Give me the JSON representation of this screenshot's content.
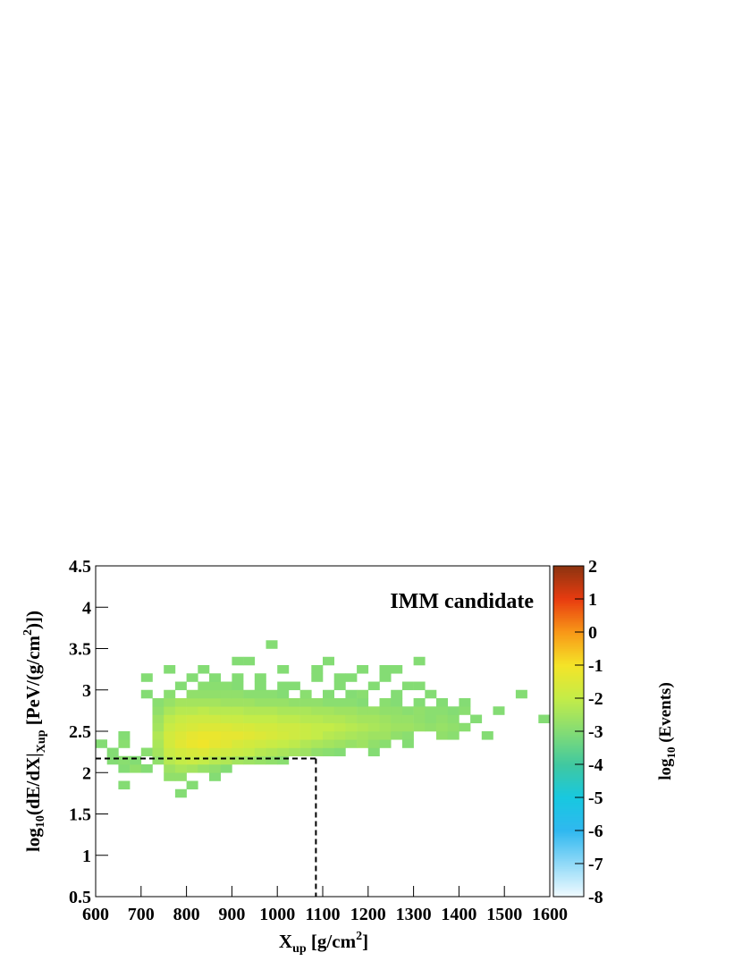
{
  "chart_data": {
    "type": "heatmap",
    "annotation": "IMM candidate",
    "x_label": [
      "X",
      "up",
      " [g/cm",
      "2",
      "]"
    ],
    "y_label": [
      "log",
      "10",
      "(dE/dX|",
      "Xup",
      " [PeV/(g/cm",
      "2",
      ")])"
    ],
    "z_label": [
      "log",
      "10",
      " (Events)"
    ],
    "xlim": [
      600,
      1600
    ],
    "ylim": [
      0.5,
      4.5
    ],
    "zlim": [
      -8,
      2
    ],
    "xticks": [
      600,
      700,
      800,
      900,
      1000,
      1100,
      1200,
      1300,
      1400,
      1500,
      1600
    ],
    "yticks": [
      0.5,
      1,
      1.5,
      2,
      2.5,
      3,
      3.5,
      4,
      4.5
    ],
    "zticks": [
      -8,
      -7,
      -6,
      -5,
      -4,
      -3,
      -2,
      -1,
      0,
      1,
      2
    ],
    "xbins": [
      600,
      625,
      650,
      675,
      700,
      725,
      750,
      775,
      800,
      825,
      850,
      875,
      900,
      925,
      950,
      975,
      1000,
      1025,
      1050,
      1075,
      1100,
      1125,
      1150,
      1175,
      1200,
      1225,
      1250,
      1275,
      1300,
      1325,
      1350,
      1375,
      1400,
      1425,
      1450,
      1475,
      1500,
      1525,
      1550,
      1575,
      1600
    ],
    "ybins": [
      0.5,
      0.6,
      0.7,
      0.8,
      0.9,
      1.0,
      1.1,
      1.2,
      1.3,
      1.4,
      1.5,
      1.6,
      1.7,
      1.8,
      1.9,
      2.0,
      2.1,
      2.2,
      2.3,
      2.4,
      2.5,
      2.6,
      2.7,
      2.8,
      2.9,
      3.0,
      3.1,
      3.2,
      3.3,
      3.4,
      3.5,
      3.6,
      3.7,
      3.8,
      3.9,
      4.0,
      4.1,
      4.2,
      4.3,
      4.4,
      4.5
    ],
    "colorscale": [
      [
        -8,
        "#f2fbff"
      ],
      [
        -6,
        "#30b8f0"
      ],
      [
        -5,
        "#18c8e0"
      ],
      [
        -4,
        "#40c8a0"
      ],
      [
        -3,
        "#84dc74"
      ],
      [
        -2,
        "#c4ec48"
      ],
      [
        -1,
        "#f4e428"
      ],
      [
        0,
        "#f89818"
      ],
      [
        1,
        "#e83c10"
      ],
      [
        2,
        "#8c3410"
      ]
    ],
    "cut": {
      "x": 1085,
      "y": 2.17
    },
    "rows": [
      {
        "y": 1.7,
        "x": [
          775
        ],
        "z": [
          -3
        ]
      },
      {
        "y": 1.8,
        "x": [
          650,
          800
        ],
        "z": [
          -3,
          -3
        ]
      },
      {
        "y": 1.9,
        "x": [
          750,
          775,
          850
        ],
        "z": [
          -2.8,
          -2.8,
          -3
        ]
      },
      {
        "y": 2.0,
        "x": [
          650,
          675,
          700,
          750,
          775,
          800,
          825,
          850,
          875
        ],
        "z": [
          -3,
          -2.8,
          -3,
          -2.6,
          -2.4,
          -2.5,
          -2.7,
          -2.8,
          -3
        ]
      },
      {
        "y": 2.1,
        "x": [
          625,
          650,
          675,
          725,
          750,
          775,
          800,
          825,
          850,
          875,
          900,
          925,
          950,
          975,
          1000
        ],
        "z": [
          -3,
          -2.9,
          -3,
          -2.8,
          -2.2,
          -2.0,
          -1.9,
          -2.0,
          -2.2,
          -2.3,
          -2.5,
          -2.6,
          -2.7,
          -2.8,
          -2.9
        ]
      },
      {
        "y": 2.2,
        "x": [
          625,
          700,
          725,
          750,
          775,
          800,
          825,
          850,
          875,
          900,
          925,
          950,
          975,
          1000,
          1025,
          1050,
          1075,
          1100,
          1125,
          1200
        ],
        "z": [
          -3,
          -2.9,
          -2.5,
          -1.9,
          -1.7,
          -1.6,
          -1.5,
          -1.7,
          -1.8,
          -1.9,
          -2.0,
          -2.2,
          -2.3,
          -2.4,
          -2.5,
          -2.6,
          -2.8,
          -2.9,
          -3,
          -3
        ]
      },
      {
        "y": 2.3,
        "x": [
          600,
          650,
          725,
          750,
          775,
          800,
          825,
          850,
          875,
          900,
          925,
          950,
          975,
          1000,
          1025,
          1050,
          1075,
          1100,
          1125,
          1150,
          1175,
          1200,
          1225,
          1275
        ],
        "z": [
          -3,
          -2.9,
          -2.4,
          -1.7,
          -1.4,
          -1.2,
          -1.1,
          -1.3,
          -1.4,
          -1.6,
          -1.7,
          -1.8,
          -1.9,
          -2.0,
          -2.1,
          -2.3,
          -2.4,
          -2.5,
          -2.6,
          -2.7,
          -2.6,
          -2.8,
          -2.9,
          -3
        ]
      },
      {
        "y": 2.4,
        "x": [
          650,
          725,
          750,
          775,
          800,
          825,
          850,
          875,
          900,
          925,
          950,
          975,
          1000,
          1025,
          1050,
          1075,
          1100,
          1125,
          1150,
          1175,
          1200,
          1225,
          1250,
          1275,
          1350,
          1375,
          1450
        ],
        "z": [
          -3,
          -2.3,
          -1.7,
          -1.5,
          -1.3,
          -1.2,
          -1.2,
          -1.3,
          -1.3,
          -1.4,
          -1.5,
          -1.6,
          -1.7,
          -1.8,
          -1.9,
          -2.0,
          -2.2,
          -2.3,
          -2.4,
          -2.5,
          -2.6,
          -2.6,
          -2.8,
          -2.9,
          -2.8,
          -2.9,
          -3
        ]
      },
      {
        "y": 2.5,
        "x": [
          725,
          750,
          775,
          800,
          825,
          850,
          875,
          900,
          925,
          950,
          975,
          1000,
          1025,
          1050,
          1075,
          1100,
          1125,
          1150,
          1175,
          1200,
          1225,
          1250,
          1275,
          1300,
          1325,
          1350,
          1375,
          1400
        ],
        "z": [
          -2.5,
          -1.9,
          -1.7,
          -1.6,
          -1.5,
          -1.5,
          -1.5,
          -1.6,
          -1.6,
          -1.7,
          -1.7,
          -1.8,
          -1.8,
          -1.9,
          -2.0,
          -2.0,
          -2.1,
          -2.2,
          -2.3,
          -2.4,
          -2.5,
          -2.6,
          -2.6,
          -2.7,
          -2.8,
          -2.7,
          -2.8,
          -2.9
        ]
      },
      {
        "y": 2.6,
        "x": [
          725,
          750,
          775,
          800,
          825,
          850,
          875,
          900,
          925,
          950,
          975,
          1000,
          1025,
          1050,
          1075,
          1100,
          1125,
          1150,
          1175,
          1200,
          1225,
          1250,
          1275,
          1300,
          1325,
          1350,
          1375,
          1425,
          1575
        ],
        "z": [
          -2.6,
          -2.1,
          -1.9,
          -1.8,
          -1.8,
          -1.8,
          -1.9,
          -1.9,
          -2.0,
          -2.0,
          -2.0,
          -2.1,
          -2.1,
          -2.2,
          -2.2,
          -2.3,
          -2.3,
          -2.4,
          -2.5,
          -2.5,
          -2.6,
          -2.7,
          -2.7,
          -2.8,
          -2.9,
          -2.8,
          -2.9,
          -3,
          -3
        ]
      },
      {
        "y": 2.7,
        "x": [
          725,
          750,
          775,
          800,
          825,
          850,
          875,
          900,
          925,
          950,
          975,
          1000,
          1025,
          1050,
          1075,
          1100,
          1125,
          1150,
          1175,
          1200,
          1225,
          1250,
          1275,
          1300,
          1325,
          1350,
          1375,
          1400,
          1475
        ],
        "z": [
          -2.8,
          -2.4,
          -2.2,
          -2.2,
          -2.1,
          -2.2,
          -2.2,
          -2.2,
          -2.3,
          -2.3,
          -2.3,
          -2.4,
          -2.4,
          -2.4,
          -2.5,
          -2.5,
          -2.6,
          -2.6,
          -2.7,
          -2.7,
          -2.8,
          -2.8,
          -2.9,
          -2.8,
          -2.9,
          -2.9,
          -3,
          -2.9,
          -3
        ]
      },
      {
        "y": 2.8,
        "x": [
          725,
          750,
          775,
          800,
          825,
          850,
          875,
          900,
          925,
          950,
          975,
          1000,
          1025,
          1050,
          1075,
          1100,
          1125,
          1150,
          1175,
          1225,
          1250,
          1300,
          1350,
          1400
        ],
        "z": [
          -2.9,
          -2.7,
          -2.5,
          -2.5,
          -2.5,
          -2.5,
          -2.6,
          -2.6,
          -2.6,
          -2.7,
          -2.7,
          -2.7,
          -2.8,
          -2.8,
          -2.8,
          -2.9,
          -2.9,
          -2.9,
          -3,
          -2.9,
          -3,
          -3,
          -3,
          -3
        ]
      },
      {
        "y": 2.9,
        "x": [
          700,
          750,
          800,
          825,
          850,
          875,
          900,
          925,
          950,
          975,
          1000,
          1050,
          1100,
          1150,
          1175,
          1250,
          1325,
          1525
        ],
        "z": [
          -3,
          -2.9,
          -2.8,
          -2.8,
          -2.8,
          -2.8,
          -2.8,
          -2.9,
          -2.9,
          -2.9,
          -3,
          -2.9,
          -3,
          -3,
          -2.9,
          -3,
          -3,
          -3
        ]
      },
      {
        "y": 3.0,
        "x": [
          775,
          825,
          850,
          875,
          900,
          950,
          1000,
          1025,
          1125,
          1200,
          1275,
          1300
        ],
        "z": [
          -3,
          -2.9,
          -2.9,
          -2.9,
          -3,
          -3,
          -3,
          -3,
          -3,
          -3,
          -3,
          -3
        ]
      },
      {
        "y": 3.1,
        "x": [
          700,
          800,
          850,
          900,
          950,
          1075,
          1125,
          1150,
          1225
        ],
        "z": [
          -3,
          -3,
          -3,
          -3,
          -3,
          -3,
          -3,
          -3,
          -3
        ]
      },
      {
        "y": 3.2,
        "x": [
          750,
          825,
          1000,
          1075,
          1175,
          1225,
          1250
        ],
        "z": [
          -3,
          -3,
          -3,
          -3,
          -3,
          -3,
          -3
        ]
      },
      {
        "y": 3.3,
        "x": [
          900,
          925,
          1100,
          1300
        ],
        "z": [
          -3,
          -3,
          -3,
          -3
        ]
      },
      {
        "y": 3.5,
        "x": [
          975
        ],
        "z": [
          -3
        ]
      }
    ]
  }
}
